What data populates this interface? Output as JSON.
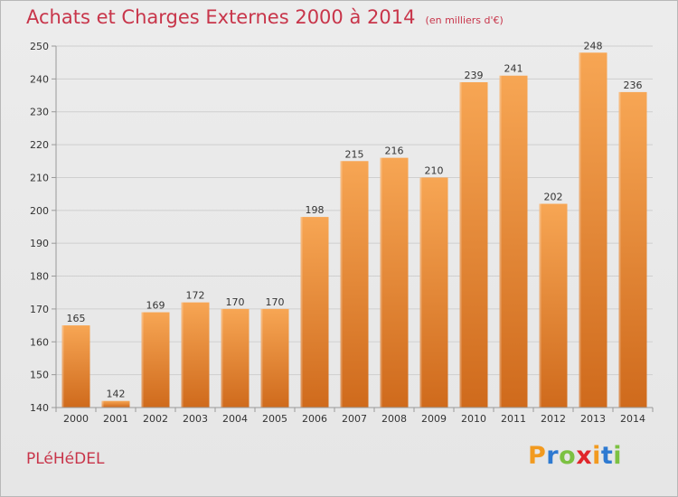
{
  "header": {
    "title": "Achats et Charges Externes 2000 à 2014",
    "subtitle": "(en milliers d'€)"
  },
  "footer": {
    "town": "PLéHéDEL",
    "logo": {
      "letters": [
        "P",
        "r",
        "o",
        "x",
        "i",
        "t",
        "i"
      ],
      "colors": [
        "#f29a1f",
        "#2e7ad1",
        "#7cc142",
        "#e0262b",
        "#f29a1f",
        "#2e7ad1",
        "#7cc142"
      ]
    }
  },
  "chart_data": {
    "type": "bar",
    "title": "Achats et Charges Externes 2000 à 2014",
    "subtitle": "(en milliers d'€)",
    "categories": [
      "2000",
      "2001",
      "2002",
      "2003",
      "2004",
      "2005",
      "2006",
      "2007",
      "2008",
      "2009",
      "2010",
      "2011",
      "2012",
      "2013",
      "2014"
    ],
    "values": [
      165,
      142,
      169,
      172,
      170,
      170,
      198,
      215,
      216,
      210,
      239,
      241,
      202,
      248,
      236
    ],
    "ylim": [
      140,
      250
    ],
    "yticks": [
      140,
      150,
      160,
      170,
      180,
      190,
      200,
      210,
      220,
      230,
      240,
      250
    ],
    "grid": true,
    "colors": {
      "bar_light": "#f7a654",
      "bar_dark": "#cf6a1c",
      "grid": "#cfcfcf",
      "axis": "#999999"
    }
  }
}
